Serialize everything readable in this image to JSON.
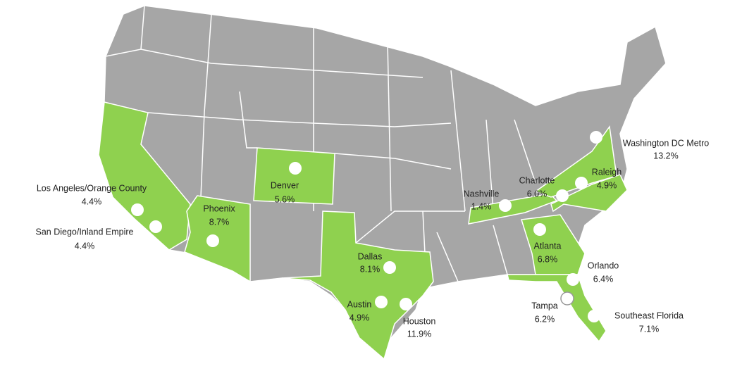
{
  "cities": [
    {
      "name": "Washington DC Metro",
      "value": "13.2%"
    },
    {
      "name": "Los Angeles/Orange County",
      "value": "4.4%"
    },
    {
      "name": "San Diego/Inland Empire",
      "value": "4.4%"
    },
    {
      "name": "Denver",
      "value": "5.6%"
    },
    {
      "name": "Phoenix",
      "value": "8.7%"
    },
    {
      "name": "Dallas",
      "value": "8.1%"
    },
    {
      "name": "Austin",
      "value": "4.9%"
    },
    {
      "name": "Houston",
      "value": "11.9%"
    },
    {
      "name": "Nashville",
      "value": "1.4%"
    },
    {
      "name": "Charlotte",
      "value": "6.0%"
    },
    {
      "name": "Raleigh",
      "value": "4.9%"
    },
    {
      "name": "Atlanta",
      "value": "6.8%"
    },
    {
      "name": "Orlando",
      "value": "6.4%"
    },
    {
      "name": "Tampa",
      "value": "6.2%"
    },
    {
      "name": "Southeast Florida",
      "value": "7.1%"
    }
  ]
}
